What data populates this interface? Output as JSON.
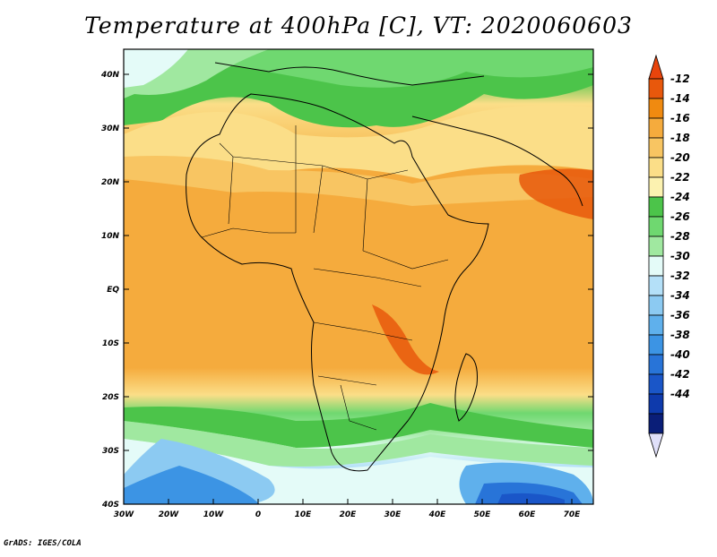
{
  "title": "Temperature at 400hPa [C], VT: 2020060603",
  "footer": "GrADS: IGES/COLA",
  "lat_labels": [
    "40N",
    "30N",
    "20N",
    "10N",
    "EQ",
    "10S",
    "20S",
    "30S",
    "40S"
  ],
  "lon_labels": [
    "30W",
    "20W",
    "10W",
    "0",
    "10E",
    "20E",
    "30E",
    "40E",
    "50E",
    "60E",
    "70E"
  ],
  "colorbar": {
    "labels": [
      "-12",
      "-14",
      "-16",
      "-18",
      "-20",
      "-22",
      "-24",
      "-26",
      "-28",
      "-30",
      "-32",
      "-34",
      "-36",
      "-38",
      "-40",
      "-42",
      "-44"
    ],
    "colors": [
      "#e8580c",
      "#f08a10",
      "#f5ab3d",
      "#f8c562",
      "#fbde88",
      "#fcf2b0",
      "#4cc44a",
      "#6fd870",
      "#a0e8a0",
      "#e4fbf8",
      "#b4e0f8",
      "#8ccaf2",
      "#5fb0ec",
      "#3c94e4",
      "#2874d8",
      "#1a56c8",
      "#0e3aac",
      "#0a1e78"
    ],
    "top_arrow_color": "#e8440c",
    "bottom_arrow_color": "#e0e0fa"
  }
}
